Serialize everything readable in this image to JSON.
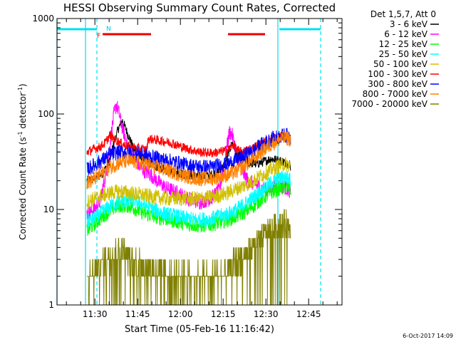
{
  "chart_data": {
    "type": "line",
    "title": "HESSI Observing Summary Count Rates, Corrected",
    "xlabel": "Start Time (05-Feb-16 11:16:42)",
    "ylabel_main": "Corrected Count Rate (s",
    "ylabel_sup1": "-1",
    "ylabel_mid": " detector",
    "ylabel_sup2": "-1",
    "ylabel_end": ")",
    "footer": "6-Oct-2017 14:09",
    "x_unit": "minutes after 11:16:42",
    "xlim": [
      0,
      100
    ],
    "ylim": [
      1,
      1000
    ],
    "yscale": "log",
    "x_ticks": [
      {
        "x": 13.3,
        "label": "11:30"
      },
      {
        "x": 28.3,
        "label": "11:45"
      },
      {
        "x": 43.3,
        "label": "12:00"
      },
      {
        "x": 58.3,
        "label": "12:15"
      },
      {
        "x": 73.3,
        "label": "12:30"
      },
      {
        "x": 88.3,
        "label": "12:45"
      }
    ],
    "y_ticks": [
      {
        "y": 1,
        "label": "1"
      },
      {
        "y": 10,
        "label": "10"
      },
      {
        "y": 100,
        "label": "100"
      },
      {
        "y": 1000,
        "label": "1000"
      }
    ],
    "legend_title": "Det 1,5,7, Att 0",
    "legend_position": "right",
    "annotations": {
      "night_label": "N",
      "flare_label": "F"
    },
    "night_intervals": [
      [
        0,
        14
      ],
      [
        78,
        92.5
      ]
    ],
    "flare_intervals": [
      [
        16,
        33
      ],
      [
        60,
        73
      ]
    ],
    "saa_lines": [
      10,
      14,
      77.5,
      92.5
    ],
    "series": [
      {
        "name": "3 - 6 keV",
        "color": "#000000",
        "points": [
          [
            10.5,
            20
          ],
          [
            13,
            21
          ],
          [
            16,
            24
          ],
          [
            18,
            30
          ],
          [
            20,
            50
          ],
          [
            21.5,
            70
          ],
          [
            23,
            85
          ],
          [
            25,
            60
          ],
          [
            27,
            42
          ],
          [
            29,
            35
          ],
          [
            31,
            32
          ],
          [
            33,
            30
          ],
          [
            35,
            28
          ],
          [
            38,
            26
          ],
          [
            42,
            24
          ],
          [
            46,
            23
          ],
          [
            50,
            22
          ],
          [
            54,
            23
          ],
          [
            57,
            25
          ],
          [
            59,
            30
          ],
          [
            60.5,
            42
          ],
          [
            61.5,
            50
          ],
          [
            63,
            40
          ],
          [
            65,
            33
          ],
          [
            67,
            31
          ],
          [
            70,
            30
          ],
          [
            73,
            32
          ],
          [
            75,
            34
          ],
          [
            77,
            33
          ],
          [
            79,
            32
          ],
          [
            80,
            31
          ],
          [
            81.5,
            30
          ],
          [
            82,
            28
          ]
        ]
      },
      {
        "name": "6 - 12 keV",
        "color": "#ff00ff",
        "points": [
          [
            10.5,
            9
          ],
          [
            13,
            10
          ],
          [
            15,
            12
          ],
          [
            17,
            22
          ],
          [
            18,
            35
          ],
          [
            19,
            60
          ],
          [
            20,
            100
          ],
          [
            20.8,
            125
          ],
          [
            21.5,
            110
          ],
          [
            23,
            70
          ],
          [
            25,
            45
          ],
          [
            27,
            35
          ],
          [
            29,
            28
          ],
          [
            31,
            25
          ],
          [
            33,
            23
          ],
          [
            35,
            20
          ],
          [
            38,
            17
          ],
          [
            42,
            15
          ],
          [
            46,
            13
          ],
          [
            50,
            12
          ],
          [
            54,
            13
          ],
          [
            57,
            16
          ],
          [
            59,
            35
          ],
          [
            60.5,
            65
          ],
          [
            61.5,
            60
          ],
          [
            63,
            40
          ],
          [
            65,
            25
          ],
          [
            67,
            20
          ],
          [
            70,
            18
          ],
          [
            73,
            16
          ],
          [
            76,
            17
          ],
          [
            78,
            18
          ],
          [
            80,
            17
          ],
          [
            81.5,
            16
          ],
          [
            82,
            15
          ]
        ]
      },
      {
        "name": "12 - 25 keV",
        "color": "#00ff00",
        "points": [
          [
            10.5,
            6
          ],
          [
            13,
            7
          ],
          [
            16,
            8.5
          ],
          [
            19,
            10
          ],
          [
            22,
            11
          ],
          [
            25,
            11
          ],
          [
            28,
            10
          ],
          [
            31,
            9
          ],
          [
            34,
            8.5
          ],
          [
            38,
            8
          ],
          [
            42,
            7.5
          ],
          [
            46,
            7
          ],
          [
            50,
            6.8
          ],
          [
            54,
            7
          ],
          [
            57,
            7.3
          ],
          [
            60,
            7.8
          ],
          [
            63,
            8.5
          ],
          [
            66,
            9.5
          ],
          [
            69,
            11
          ],
          [
            72,
            13
          ],
          [
            75,
            15
          ],
          [
            78,
            16.5
          ],
          [
            80,
            17
          ],
          [
            81.5,
            17
          ],
          [
            82,
            16
          ]
        ]
      },
      {
        "name": "25 - 50 keV",
        "color": "#00ffff",
        "points": [
          [
            10.5,
            7.5
          ],
          [
            13,
            8
          ],
          [
            16,
            9.5
          ],
          [
            19,
            11
          ],
          [
            22,
            12
          ],
          [
            25,
            12.5
          ],
          [
            28,
            12
          ],
          [
            31,
            11
          ],
          [
            34,
            10
          ],
          [
            38,
            9
          ],
          [
            42,
            8.5
          ],
          [
            46,
            8
          ],
          [
            50,
            7.8
          ],
          [
            54,
            8
          ],
          [
            57,
            8.5
          ],
          [
            60,
            9
          ],
          [
            63,
            10
          ],
          [
            66,
            11.5
          ],
          [
            69,
            13.5
          ],
          [
            72,
            16
          ],
          [
            75,
            19
          ],
          [
            78,
            21
          ],
          [
            80,
            22
          ],
          [
            81.5,
            21
          ],
          [
            82,
            20
          ]
        ]
      },
      {
        "name": "50 - 100 keV",
        "color": "#d0c000",
        "points": [
          [
            10.5,
            12
          ],
          [
            13,
            13
          ],
          [
            16,
            14
          ],
          [
            19,
            15
          ],
          [
            22,
            15.5
          ],
          [
            25,
            15
          ],
          [
            28,
            14.5
          ],
          [
            31,
            14
          ],
          [
            34,
            13.5
          ],
          [
            38,
            13
          ],
          [
            42,
            13
          ],
          [
            46,
            13
          ],
          [
            50,
            13
          ],
          [
            54,
            13.5
          ],
          [
            57,
            14
          ],
          [
            60,
            15
          ],
          [
            63,
            16.5
          ],
          [
            66,
            18
          ],
          [
            69,
            20
          ],
          [
            72,
            23
          ],
          [
            75,
            26
          ],
          [
            78,
            29
          ],
          [
            80,
            30
          ],
          [
            81.5,
            29
          ],
          [
            82,
            28
          ]
        ]
      },
      {
        "name": "100 - 300 keV",
        "color": "#ff0000",
        "points": [
          [
            10.5,
            40
          ],
          [
            13,
            43
          ],
          [
            15,
            45
          ],
          [
            17,
            50
          ],
          [
            18.5,
            60
          ],
          [
            20,
            55
          ],
          [
            22,
            50
          ],
          [
            24,
            47
          ],
          [
            26,
            45
          ],
          [
            28,
            44
          ],
          [
            30,
            43
          ],
          [
            31.5,
            42
          ],
          [
            32,
            55
          ],
          [
            34,
            54
          ],
          [
            37,
            52
          ],
          [
            40,
            50
          ],
          [
            43,
            46
          ],
          [
            46,
            43
          ],
          [
            50,
            40
          ],
          [
            54,
            39
          ],
          [
            57,
            40
          ],
          [
            60,
            42
          ],
          [
            62,
            48
          ],
          [
            63,
            42
          ],
          [
            65,
            40
          ],
          [
            68,
            43
          ],
          [
            71,
            48
          ],
          [
            74,
            53
          ],
          [
            77,
            57
          ],
          [
            79,
            58
          ],
          [
            81,
            57
          ],
          [
            82,
            55
          ]
        ]
      },
      {
        "name": "300 - 800 keV",
        "color": "#0000ff",
        "points": [
          [
            10.5,
            26
          ],
          [
            13,
            29
          ],
          [
            16,
            33
          ],
          [
            19,
            38
          ],
          [
            22,
            40
          ],
          [
            25,
            40
          ],
          [
            28,
            39
          ],
          [
            31,
            37
          ],
          [
            34,
            35
          ],
          [
            38,
            33
          ],
          [
            42,
            31
          ],
          [
            46,
            29
          ],
          [
            50,
            28
          ],
          [
            54,
            28
          ],
          [
            57,
            29
          ],
          [
            60,
            30
          ],
          [
            63,
            33
          ],
          [
            66,
            37
          ],
          [
            69,
            42
          ],
          [
            72,
            48
          ],
          [
            75,
            54
          ],
          [
            78,
            58
          ],
          [
            80,
            60
          ],
          [
            81.5,
            59
          ],
          [
            82,
            57
          ]
        ]
      },
      {
        "name": "800 - 7000 keV",
        "color": "#ff8000",
        "points": [
          [
            10.5,
            19
          ],
          [
            13,
            21
          ],
          [
            16,
            24
          ],
          [
            19,
            28
          ],
          [
            22,
            31
          ],
          [
            25,
            32
          ],
          [
            28,
            31
          ],
          [
            31,
            30
          ],
          [
            34,
            28
          ],
          [
            38,
            26
          ],
          [
            42,
            24
          ],
          [
            46,
            22
          ],
          [
            50,
            21
          ],
          [
            54,
            21
          ],
          [
            57,
            22
          ],
          [
            60,
            23
          ],
          [
            63,
            25
          ],
          [
            66,
            29
          ],
          [
            69,
            34
          ],
          [
            72,
            41
          ],
          [
            75,
            48
          ],
          [
            78,
            54
          ],
          [
            80,
            56
          ],
          [
            81.5,
            55
          ],
          [
            82,
            53
          ]
        ]
      },
      {
        "name": "7000 - 20000 keV",
        "color": "#808000",
        "points": [
          [
            10.5,
            1.8
          ],
          [
            12,
            2
          ],
          [
            13.5,
            2.3
          ],
          [
            15,
            2.6
          ],
          [
            17,
            3
          ],
          [
            19,
            3.4
          ],
          [
            21,
            3.6
          ],
          [
            23,
            3.6
          ],
          [
            25,
            3.3
          ],
          [
            27,
            3
          ],
          [
            29,
            2.8
          ],
          [
            31,
            2.6
          ],
          [
            33,
            2.4
          ],
          [
            35,
            2.2
          ],
          [
            38,
            2
          ],
          [
            42,
            1.9
          ],
          [
            46,
            1.9
          ],
          [
            50,
            1.9
          ],
          [
            54,
            1.9
          ],
          [
            57,
            2
          ],
          [
            60,
            2.3
          ],
          [
            63,
            2.8
          ],
          [
            66,
            3.4
          ],
          [
            69,
            4.2
          ],
          [
            72,
            5.2
          ],
          [
            75,
            6.2
          ],
          [
            78,
            7
          ],
          [
            80,
            7.2
          ],
          [
            81.5,
            6.8
          ],
          [
            82,
            6.3
          ]
        ]
      }
    ]
  }
}
